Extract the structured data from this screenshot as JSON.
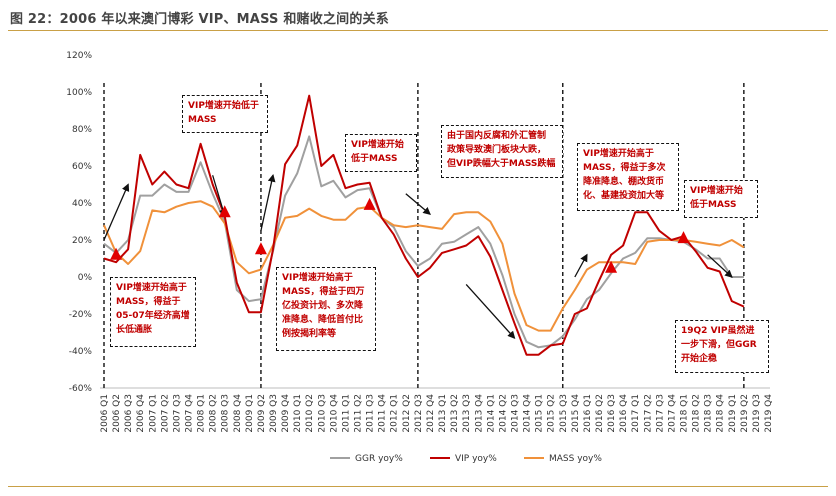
{
  "title": "图 22：2006 年以来澳门博彩 VIP、MASS 和赌收之间的关系",
  "colors": {
    "ggr": "#a0a0a0",
    "vip": "#c00000",
    "mass": "#f0913a",
    "accent": "#c9a046"
  },
  "chart_data": {
    "type": "line",
    "x": [
      "2006 Q1",
      "2006 Q2",
      "2006 Q3",
      "2006 Q4",
      "2007 Q1",
      "2007 Q2",
      "2007 Q3",
      "2007 Q4",
      "2008 Q1",
      "2008 Q2",
      "2008 Q3",
      "2008 Q4",
      "2009 Q1",
      "2009 Q2",
      "2009 Q3",
      "2009 Q4",
      "2010 Q1",
      "2010 Q2",
      "2010 Q3",
      "2010 Q4",
      "2011 Q1",
      "2011 Q2",
      "2011 Q3",
      "2011 Q4",
      "2012 Q1",
      "2012 Q2",
      "2012 Q3",
      "2012 Q4",
      "2013 Q1",
      "2013 Q2",
      "2013 Q3",
      "2013 Q4",
      "2014 Q1",
      "2014 Q2",
      "2014 Q3",
      "2014 Q4",
      "2015 Q1",
      "2015 Q2",
      "2015 Q3",
      "2015 Q4",
      "2016 Q1",
      "2016 Q2",
      "2016 Q3",
      "2016 Q4",
      "2017 Q1",
      "2017 Q2",
      "2017 Q3",
      "2017 Q4",
      "2018 Q1",
      "2018 Q2",
      "2018 Q3",
      "2018 Q4",
      "2019 Q1",
      "2019 Q2",
      "2019 Q3",
      "2019 Q4"
    ],
    "series": [
      {
        "name": "GGR yoy%",
        "color": "#a0a0a0",
        "values": [
          18,
          13,
          20,
          44,
          44,
          50,
          46,
          46,
          62,
          45,
          30,
          -7,
          -13,
          -12,
          14,
          44,
          56,
          76,
          49,
          52,
          43,
          47,
          48,
          32,
          27,
          14,
          6,
          10,
          18,
          19,
          23,
          27,
          18,
          1,
          -20,
          -35,
          -38,
          -37,
          -32,
          -23,
          -12,
          -7,
          2,
          10,
          13,
          21,
          21,
          20,
          19,
          15,
          10,
          10,
          0,
          0,
          null,
          null
        ]
      },
      {
        "name": "VIP yoy%",
        "color": "#c00000",
        "values": [
          10,
          8,
          15,
          66,
          50,
          57,
          50,
          48,
          72,
          50,
          33,
          -3,
          -19,
          -19,
          15,
          61,
          71,
          98,
          60,
          66,
          48,
          50,
          51,
          32,
          23,
          10,
          0,
          5,
          13,
          15,
          17,
          22,
          11,
          -7,
          -25,
          -42,
          -42,
          -37,
          -36,
          -20,
          -17,
          -2,
          12,
          17,
          35,
          35,
          25,
          20,
          22,
          14,
          5,
          3,
          -13,
          -16,
          null,
          null
        ]
      },
      {
        "name": "MASS yoy%",
        "color": "#f0913a",
        "values": [
          28,
          13,
          7,
          14,
          36,
          35,
          38,
          40,
          41,
          38,
          29,
          8,
          2,
          4,
          17,
          32,
          33,
          37,
          33,
          31,
          31,
          37,
          38,
          32,
          28,
          27,
          28,
          27,
          26,
          34,
          35,
          35,
          30,
          18,
          -9,
          -26,
          -29,
          -29,
          -17,
          -7,
          4,
          8,
          8,
          8,
          7,
          19,
          20,
          20,
          20,
          19,
          18,
          17,
          20,
          16,
          null,
          null
        ]
      }
    ],
    "y_ticks": [
      "120%",
      "100%",
      "80%",
      "60%",
      "40%",
      "20%",
      "0%",
      "-20%",
      "-40%",
      "-60%"
    ],
    "ylim": [
      -60,
      120
    ],
    "legend": [
      "GGR yoy%",
      "VIP yoy%",
      "MASS yoy%"
    ],
    "legend_position": "bottom",
    "vertical_dividers": [
      "2006 Q1",
      "2009 Q2",
      "2012 Q3",
      "2015 Q3",
      "2019 Q2"
    ],
    "triangle_markers": [
      {
        "x": "2006 Q2",
        "y": 12
      },
      {
        "x": "2008 Q3",
        "y": 35
      },
      {
        "x": "2009 Q2",
        "y": 15
      },
      {
        "x": "2011 Q3",
        "y": 39
      },
      {
        "x": "2016 Q3",
        "y": 5
      },
      {
        "x": "2018 Q1",
        "y": 21
      }
    ],
    "annotations": [
      {
        "text": "VIP增速开始低于\nMASS"
      },
      {
        "text": "VIP增速开始\n低于MASS"
      },
      {
        "text": "由于国内反腐和外汇管制\n政策导致澳门板块大跌，\n但VIP跌幅大于MASS跌幅"
      },
      {
        "text": "VIP增速开始高于\nMASS，得益于多次\n降准降息、棚改货币\n化、基建投资加大等"
      },
      {
        "text": "VIP增速开始\n低于MASS"
      },
      {
        "text": "VIP增速开始高于\nMASS，得益于\n05-07年经济高增\n长低通胀"
      },
      {
        "text": "VIP增速开始高于\nMASS，得益于四万\n亿投资计划、多次降\n准降息、降低首付比\n例按揭利率等"
      },
      {
        "text": "19Q2 VIP虽然进\n一步下滑，但GGR\n开始企稳"
      }
    ]
  }
}
